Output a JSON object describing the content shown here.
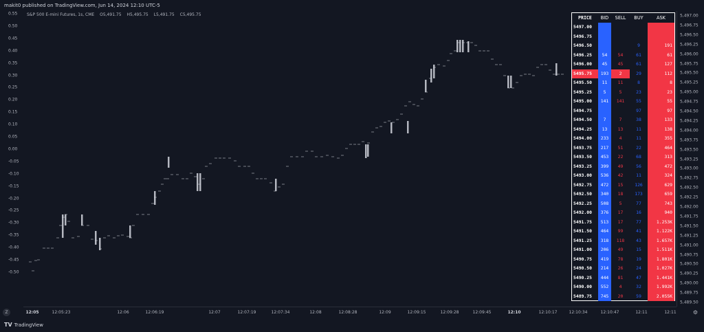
{
  "header": {
    "publish_line": "makit0 published on TradingView.com, Jun 14, 2024 12:10 UTC-5"
  },
  "legend": {
    "symbol": "S&P 500 E-mini Futures, 1s, CME",
    "open": "O5,491.75",
    "high": "H5,495.75",
    "low": "L5,491.75",
    "close": "C5,495.75"
  },
  "left_axis": [
    "0.55",
    "0.50",
    "0.45",
    "0.40",
    "0.35",
    "0.30",
    "0.25",
    "0.20",
    "0.15",
    "0.10",
    "0.05",
    "0.00",
    "-0.05",
    "-0.10",
    "-0.15",
    "-0.20",
    "-0.25",
    "-0.30",
    "-0.35",
    "-0.40",
    "-0.45",
    "-0.50"
  ],
  "right_axis": [
    "5,497.00",
    "5,496.75",
    "5,496.50",
    "5,496.25",
    "5,496.00",
    "5,495.75",
    "5,495.50",
    "5,495.25",
    "5,495.00",
    "5,494.75",
    "5,494.50",
    "5,494.25",
    "5,494.00",
    "5,493.75",
    "5,493.50",
    "5,493.25",
    "5,493.00",
    "5,492.75",
    "5,492.50",
    "5,492.25",
    "5,492.00",
    "5,491.75",
    "5,491.50",
    "5,491.25",
    "5,491.00",
    "5,490.75",
    "5,490.50",
    "5,490.25",
    "5,490.00",
    "5,489.75",
    "5,489.50"
  ],
  "time_axis": [
    {
      "label": "12:05",
      "bold": true
    },
    {
      "label": "12:05:23",
      "bold": false
    },
    {
      "label": "12:06",
      "bold": false
    },
    {
      "label": "12:06:19",
      "bold": false
    },
    {
      "label": "12:07",
      "bold": false
    },
    {
      "label": "12:07:19",
      "bold": false
    },
    {
      "label": "12:07:34",
      "bold": false
    },
    {
      "label": "12:08",
      "bold": false
    },
    {
      "label": "12:08:28",
      "bold": false
    },
    {
      "label": "12:09",
      "bold": false
    },
    {
      "label": "12:09:15",
      "bold": false
    },
    {
      "label": "12:09:28",
      "bold": false
    },
    {
      "label": "12:09:45",
      "bold": false
    },
    {
      "label": "12:10",
      "bold": true
    },
    {
      "label": "12:10:17",
      "bold": false
    },
    {
      "label": "12:10:34",
      "bold": false
    },
    {
      "label": "12:10:47",
      "bold": false
    },
    {
      "label": "12:11",
      "bold": false
    },
    {
      "label": "12:11",
      "bold": false
    }
  ],
  "footer": {
    "brand": "TradingView",
    "brand_mark": "TV",
    "zoom_label": "Z",
    "settings_icon": "gear-icon"
  },
  "dom": {
    "headers": {
      "price": "PRICE",
      "bid": "BID",
      "sell": "SELL",
      "buy": "BUY",
      "ask": "ASK"
    },
    "current_price": "5495.75",
    "rows": [
      {
        "price": "5497.00",
        "bid": "",
        "sell": "",
        "buy": "",
        "ask": ""
      },
      {
        "price": "5496.75",
        "bid": "",
        "sell": "",
        "buy": "",
        "ask": ""
      },
      {
        "price": "5496.50",
        "bid": "",
        "sell": "",
        "buy": "9",
        "ask": "191"
      },
      {
        "price": "5496.25",
        "bid": "54",
        "sell": "54",
        "buy": "61",
        "ask": "61"
      },
      {
        "price": "5496.00",
        "bid": "45",
        "sell": "45",
        "buy": "61",
        "ask": "127"
      },
      {
        "price": "5495.75",
        "bid": "193",
        "sell": "2",
        "buy": "29",
        "ask": "112"
      },
      {
        "price": "5495.50",
        "bid": "11",
        "sell": "11",
        "buy": "8",
        "ask": "8"
      },
      {
        "price": "5495.25",
        "bid": "5",
        "sell": "5",
        "buy": "23",
        "ask": "23"
      },
      {
        "price": "5495.00",
        "bid": "141",
        "sell": "141",
        "buy": "55",
        "ask": "55"
      },
      {
        "price": "5494.75",
        "bid": "",
        "sell": "",
        "buy": "97",
        "ask": "97"
      },
      {
        "price": "5494.50",
        "bid": "7",
        "sell": "7",
        "buy": "38",
        "ask": "133"
      },
      {
        "price": "5494.25",
        "bid": "13",
        "sell": "13",
        "buy": "11",
        "ask": "138"
      },
      {
        "price": "5494.00",
        "bid": "233",
        "sell": "4",
        "buy": "11",
        "ask": "355"
      },
      {
        "price": "5493.75",
        "bid": "217",
        "sell": "51",
        "buy": "22",
        "ask": "464"
      },
      {
        "price": "5493.50",
        "bid": "453",
        "sell": "22",
        "buy": "68",
        "ask": "313"
      },
      {
        "price": "5493.25",
        "bid": "399",
        "sell": "49",
        "buy": "56",
        "ask": "472"
      },
      {
        "price": "5493.00",
        "bid": "536",
        "sell": "42",
        "buy": "11",
        "ask": "324"
      },
      {
        "price": "5492.75",
        "bid": "472",
        "sell": "15",
        "buy": "126",
        "ask": "629"
      },
      {
        "price": "5492.50",
        "bid": "340",
        "sell": "18",
        "buy": "173",
        "ask": "659"
      },
      {
        "price": "5492.25",
        "bid": "508",
        "sell": "5",
        "buy": "77",
        "ask": "743"
      },
      {
        "price": "5492.00",
        "bid": "376",
        "sell": "17",
        "buy": "16",
        "ask": "940"
      },
      {
        "price": "5491.75",
        "bid": "513",
        "sell": "17",
        "buy": "77",
        "ask": "1.253K"
      },
      {
        "price": "5491.50",
        "bid": "464",
        "sell": "99",
        "buy": "41",
        "ask": "1.122K"
      },
      {
        "price": "5491.25",
        "bid": "318",
        "sell": "118",
        "buy": "43",
        "ask": "1.657K"
      },
      {
        "price": "5491.00",
        "bid": "206",
        "sell": "49",
        "buy": "15",
        "ask": "1.511K"
      },
      {
        "price": "5490.75",
        "bid": "419",
        "sell": "78",
        "buy": "19",
        "ask": "1.801K"
      },
      {
        "price": "5490.50",
        "bid": "214",
        "sell": "26",
        "buy": "24",
        "ask": "1.027K"
      },
      {
        "price": "5490.25",
        "bid": "444",
        "sell": "81",
        "buy": "47",
        "ask": "1.441K"
      },
      {
        "price": "5490.00",
        "bid": "552",
        "sell": "4",
        "buy": "32",
        "ask": "1.992K"
      },
      {
        "price": "5489.75",
        "bid": "745",
        "sell": "20",
        "buy": "59",
        "ask": "2.055K"
      }
    ]
  },
  "colors": {
    "background": "#131722",
    "bid": "#2962ff",
    "ask": "#f23645",
    "candle": "#d1d4dc"
  }
}
